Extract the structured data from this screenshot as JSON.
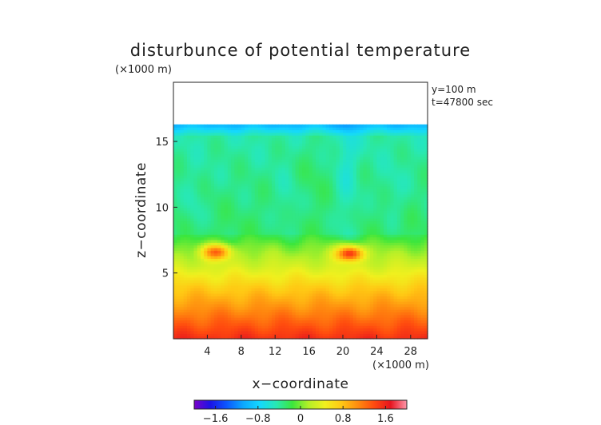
{
  "chart_data": {
    "type": "heatmap",
    "title": "disturbunce of potential temperature",
    "xlabel": "x−coordinate",
    "ylabel": "z−coordinate",
    "x_unit": "(×1000 m)",
    "z_unit": "(×1000 m)",
    "info_lines": [
      "y=100 m",
      "t=47800 sec"
    ],
    "xlim": [
      0,
      30
    ],
    "ylim": [
      0,
      19.5
    ],
    "x_ticks": [
      4,
      8,
      12,
      16,
      20,
      24,
      28
    ],
    "x_tick_labels": [
      "4",
      "8",
      "12",
      "16",
      "20",
      "24",
      "28"
    ],
    "y_ticks": [
      5,
      10,
      15
    ],
    "y_tick_labels": [
      "5",
      "10",
      "15"
    ],
    "data_top": 16.3,
    "colorbar": {
      "range": [
        -2,
        2
      ],
      "ticks": [
        -1.6,
        -0.8,
        0,
        0.8,
        1.6
      ],
      "tick_labels": [
        "−1.6",
        "−0.8",
        "0",
        "0.8",
        "1.6"
      ],
      "colors": [
        "#7a00c8",
        "#1a14e6",
        "#0c58ff",
        "#0ca8ff",
        "#14d8ff",
        "#28e8b4",
        "#3ce63c",
        "#b4f028",
        "#f0f01e",
        "#ffc814",
        "#ff8c0f",
        "#ff4b0f",
        "#e6141e",
        "#ff96aa"
      ]
    },
    "features": [
      {
        "kind": "layer",
        "z": 16.2,
        "value": -1.7
      },
      {
        "kind": "warm_blob",
        "x": 5.0,
        "z": 6.6,
        "value": 1.3
      },
      {
        "kind": "warm_blob",
        "x": 20.8,
        "z": 6.5,
        "value": 1.5
      }
    ]
  }
}
